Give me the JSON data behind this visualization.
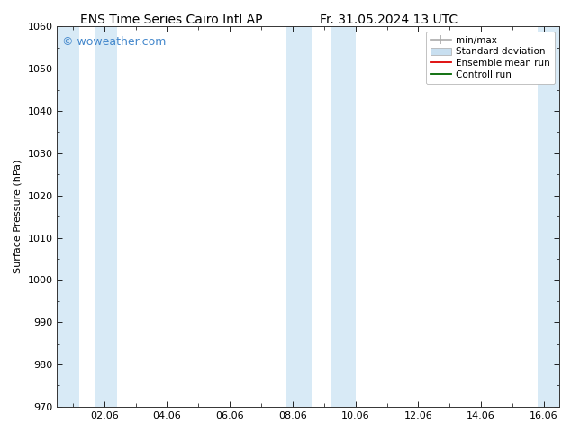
{
  "title_left": "ENS Time Series Cairo Intl AP",
  "title_right": "Fr. 31.05.2024 13 UTC",
  "ylabel": "Surface Pressure (hPa)",
  "ylim": [
    970,
    1060
  ],
  "yticks": [
    970,
    980,
    990,
    1000,
    1010,
    1020,
    1030,
    1040,
    1050,
    1060
  ],
  "xlim_start": 0.5,
  "xlim_end": 16.5,
  "xtick_labels": [
    "02.06",
    "04.06",
    "06.06",
    "08.06",
    "10.06",
    "12.06",
    "14.06",
    "16.06"
  ],
  "xtick_positions": [
    2,
    4,
    6,
    8,
    10,
    12,
    14,
    16
  ],
  "watermark": "© woweather.com",
  "watermark_color": "#4488cc",
  "bg_color": "#ffffff",
  "plot_bg_color": "#ffffff",
  "shaded_bands": [
    {
      "x_start": 0.5,
      "x_end": 1.2,
      "color": "#d8eaf6"
    },
    {
      "x_start": 1.7,
      "x_end": 2.4,
      "color": "#d8eaf6"
    },
    {
      "x_start": 7.8,
      "x_end": 8.6,
      "color": "#d8eaf6"
    },
    {
      "x_start": 9.2,
      "x_end": 10.0,
      "color": "#d8eaf6"
    },
    {
      "x_start": 15.8,
      "x_end": 16.5,
      "color": "#d8eaf6"
    }
  ],
  "legend_labels": [
    "min/max",
    "Standard deviation",
    "Ensemble mean run",
    "Controll run"
  ],
  "minmax_color": "#aaaaaa",
  "stddev_color": "#c8dff0",
  "ensemble_color": "#dd0000",
  "control_color": "#006600",
  "title_fontsize": 10,
  "axis_label_fontsize": 8,
  "tick_fontsize": 8,
  "watermark_fontsize": 9,
  "legend_fontsize": 7.5
}
